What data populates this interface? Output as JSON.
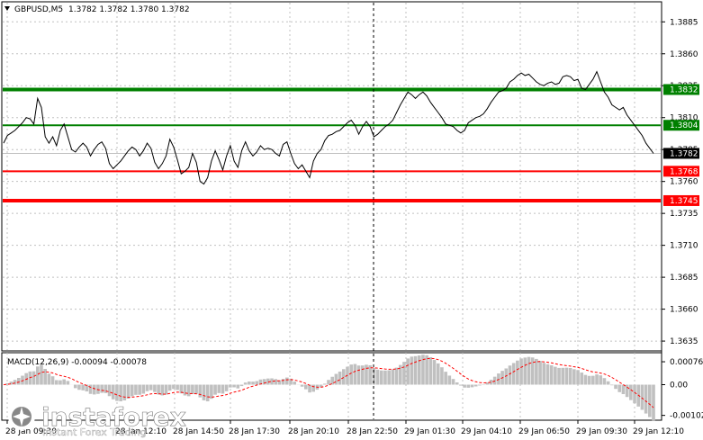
{
  "header": {
    "symbol": "GBPUSD,M5",
    "ohlc": "1.3782 1.3782 1.3780 1.3782"
  },
  "macd": {
    "label": "MACD(12,26,9) -0.00094 -0.00078",
    "ticks": [
      {
        "value": 0.00076,
        "label": "0.00076"
      },
      {
        "value": 0.0,
        "label": "0.00"
      },
      {
        "value": -0.00102,
        "label": "-0.00102"
      }
    ]
  },
  "logo": {
    "name": "instaforex",
    "tagline": "Instant Forex Trading"
  },
  "colors": {
    "resistance": "#008000",
    "support": "#ff0000",
    "price_line": "#000000",
    "current_price": "#000000",
    "macd_hist": "#c0c0c0",
    "macd_signal": "#ff0000",
    "grid": "#c0c0c0"
  },
  "chart_data": {
    "type": "line",
    "title": "GBPUSD,M5",
    "ylim": [
      1.3628,
      1.39
    ],
    "y_ticks": [
      {
        "value": 1.3885,
        "label": "1.3885"
      },
      {
        "value": 1.386,
        "label": "1.3860"
      },
      {
        "value": 1.3835,
        "label": "1.3835"
      },
      {
        "value": 1.381,
        "label": "1.3810"
      },
      {
        "value": 1.3785,
        "label": "1.3785"
      },
      {
        "value": 1.376,
        "label": "1.3760"
      },
      {
        "value": 1.3735,
        "label": "1.3735"
      },
      {
        "value": 1.371,
        "label": "1.3710"
      },
      {
        "value": 1.3685,
        "label": "1.3685"
      },
      {
        "value": 1.366,
        "label": "1.3660"
      },
      {
        "value": 1.3635,
        "label": "1.3635"
      }
    ],
    "x_ticks": [
      "28 Jan 09:30",
      "28 Jan 12:10",
      "28 Jan 14:50",
      "28 Jan 17:30",
      "28 Jan 20:10",
      "28 Jan 22:50",
      "29 Jan 01:30",
      "29 Jan 04:10",
      "29 Jan 06:50",
      "29 Jan 09:30",
      "29 Jan 12:10"
    ],
    "levels": [
      {
        "value": 1.3832,
        "label": "1.3832",
        "kind": "resistance",
        "weight": "thick"
      },
      {
        "value": 1.3804,
        "label": "1.3804",
        "kind": "resistance",
        "weight": "thin"
      },
      {
        "value": 1.3768,
        "label": "1.3768",
        "kind": "support",
        "weight": "thin"
      },
      {
        "value": 1.3745,
        "label": "1.3745",
        "kind": "support",
        "weight": "thick"
      }
    ],
    "current_price": {
      "value": 1.3782,
      "label": "1.3782"
    },
    "series": [
      {
        "values": [
          1.379,
          1.3796,
          1.3798,
          1.38,
          1.3803,
          1.3806,
          1.381,
          1.3809,
          1.3805,
          1.3825,
          1.3818,
          1.3795,
          1.379,
          1.3795,
          1.3788,
          1.38,
          1.3805,
          1.3795,
          1.3785,
          1.3783,
          1.3787,
          1.379,
          1.3787,
          1.378,
          1.3785,
          1.3789,
          1.3791,
          1.3786,
          1.3774,
          1.377,
          1.3773,
          1.3776,
          1.378,
          1.3784,
          1.3787,
          1.3785,
          1.378,
          1.3784,
          1.379,
          1.3786,
          1.3775,
          1.377,
          1.3774,
          1.378,
          1.3793,
          1.3787,
          1.3777,
          1.3766,
          1.3768,
          1.3771,
          1.3782,
          1.3775,
          1.376,
          1.3758,
          1.3763,
          1.3776,
          1.3784,
          1.3777,
          1.3769,
          1.378,
          1.3788,
          1.3776,
          1.3771,
          1.3784,
          1.3791,
          1.3784,
          1.378,
          1.3783,
          1.3788,
          1.3785,
          1.3786,
          1.3785,
          1.3782,
          1.378,
          1.3789,
          1.3791,
          1.3782,
          1.3774,
          1.377,
          1.3773,
          1.3768,
          1.3763,
          1.3776,
          1.3782,
          1.3785,
          1.3792,
          1.3796,
          1.3797,
          1.3799,
          1.38,
          1.3803,
          1.3806,
          1.3808,
          1.3804,
          1.3797,
          1.3803,
          1.3807,
          1.3803,
          1.3795,
          1.3797,
          1.38,
          1.3803,
          1.3805,
          1.3808,
          1.3814,
          1.382,
          1.3825,
          1.383,
          1.3828,
          1.3825,
          1.3828,
          1.383,
          1.3827,
          1.3822,
          1.3818,
          1.3814,
          1.381,
          1.3805,
          1.3804,
          1.3803,
          1.38,
          1.3798,
          1.38,
          1.3806,
          1.3808,
          1.381,
          1.3811,
          1.3813,
          1.3817,
          1.3822,
          1.3826,
          1.383,
          1.3831,
          1.3833,
          1.3838,
          1.384,
          1.3843,
          1.3845,
          1.3843,
          1.3844,
          1.3841,
          1.3838,
          1.3836,
          1.3835,
          1.3837,
          1.3838,
          1.3836,
          1.3837,
          1.3842,
          1.3843,
          1.3842,
          1.3839,
          1.384,
          1.3833,
          1.3832,
          1.3836,
          1.384,
          1.3846,
          1.3838,
          1.383,
          1.3826,
          1.382,
          1.3818,
          1.3816,
          1.3818,
          1.3812,
          1.3808,
          1.3804,
          1.38,
          1.3796,
          1.379,
          1.3786,
          1.3782
        ]
      }
    ]
  }
}
